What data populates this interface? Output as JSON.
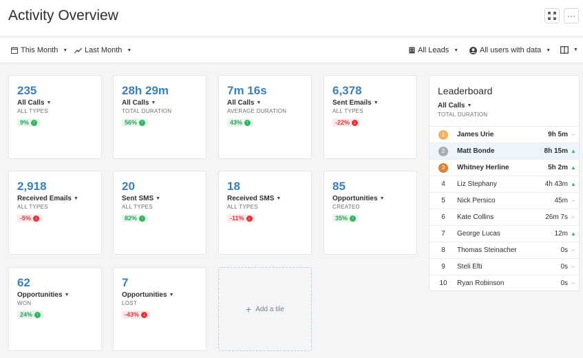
{
  "header": {
    "title": "Activity Overview",
    "icons": {
      "fullscreen": "expand-icon",
      "more": "more-icon"
    },
    "more_label": "···"
  },
  "toolbar": {
    "period": "This Month",
    "compare": "Last Month",
    "leads": "All Leads",
    "users": "All users with data"
  },
  "colors": {
    "value_blue": "#3b7fba",
    "up_green": "#36b062",
    "down_red": "#d9353b",
    "gold": "#f0b35e",
    "silver": "#a9adb2",
    "bronze": "#d98436"
  },
  "tiles": [
    {
      "value": "235",
      "metric": "All Calls",
      "sub": "ALL TYPES",
      "change": "9%",
      "dir": "up"
    },
    {
      "value": "28h 29m",
      "metric": "All Calls",
      "sub": "TOTAL DURATION",
      "change": "56%",
      "dir": "up"
    },
    {
      "value": "7m 16s",
      "metric": "All Calls",
      "sub": "AVERAGE DURATION",
      "change": "43%",
      "dir": "up"
    },
    {
      "value": "6,378",
      "metric": "Sent Emails",
      "sub": "ALL TYPES",
      "change": "-22%",
      "dir": "down"
    },
    {
      "value": "2,918",
      "metric": "Received Emails",
      "sub": "ALL TYPES",
      "change": "-5%",
      "dir": "down"
    },
    {
      "value": "20",
      "metric": "Sent SMS",
      "sub": "ALL TYPES",
      "change": "82%",
      "dir": "up"
    },
    {
      "value": "18",
      "metric": "Received SMS",
      "sub": "ALL TYPES",
      "change": "-11%",
      "dir": "down"
    },
    {
      "value": "85",
      "metric": "Opportunities",
      "sub": "CREATED",
      "change": "35%",
      "dir": "up"
    },
    {
      "value": "62",
      "metric": "Opportunities",
      "sub": "WON",
      "change": "24%",
      "dir": "up"
    },
    {
      "value": "7",
      "metric": "Opportunities",
      "sub": "LOST",
      "change": "-43%",
      "dir": "down"
    }
  ],
  "add_tile": {
    "label": "Add a tile"
  },
  "leaderboard": {
    "title": "Leaderboard",
    "metric": "All Calls",
    "sub": "TOTAL DURATION",
    "rows": [
      {
        "rank": "1",
        "name": "James Urie",
        "value": "9h 5m",
        "trend": "flat"
      },
      {
        "rank": "2",
        "name": "Matt Bonde",
        "value": "8h 15m",
        "trend": "up"
      },
      {
        "rank": "3",
        "name": "Whitney Herline",
        "value": "5h 2m",
        "trend": "up"
      },
      {
        "rank": "4",
        "name": "Liz Stephany",
        "value": "4h 43m",
        "trend": "up"
      },
      {
        "rank": "5",
        "name": "Nick Persico",
        "value": "45m",
        "trend": "flat"
      },
      {
        "rank": "6",
        "name": "Kate Collins",
        "value": "26m 7s",
        "trend": "flat"
      },
      {
        "rank": "7",
        "name": "George Lucas",
        "value": "12m",
        "trend": "up"
      },
      {
        "rank": "8",
        "name": "Thomas Steinacher",
        "value": "0s",
        "trend": "flat"
      },
      {
        "rank": "9",
        "name": "Steli Efti",
        "value": "0s",
        "trend": "flat"
      },
      {
        "rank": "10",
        "name": "Ryan Robinson",
        "value": "0s",
        "trend": "flat"
      }
    ]
  }
}
